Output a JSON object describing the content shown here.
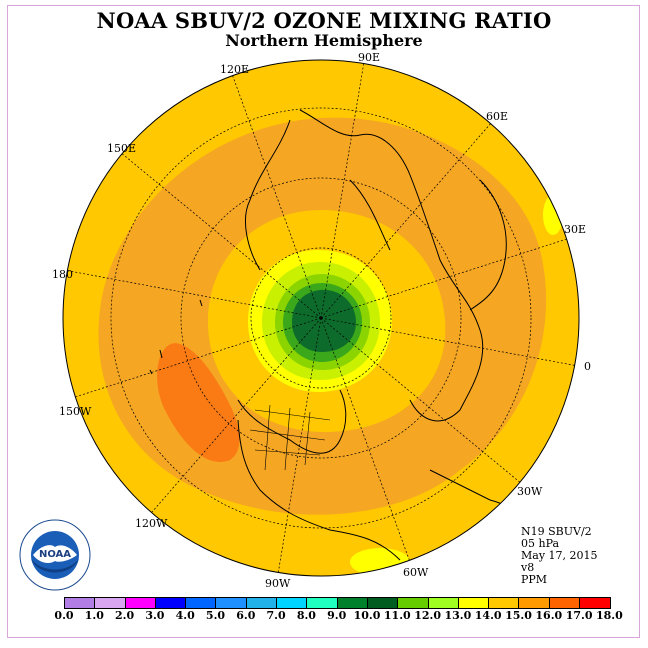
{
  "title": "NOAA SBUV/2 OZONE MIXING RATIO",
  "subtitle": "Northern Hemisphere",
  "longitude_labels": [
    "90E",
    "60E",
    "30E",
    "0",
    "30W",
    "60W",
    "90W",
    "120W",
    "150W",
    "180",
    "150E",
    "120E"
  ],
  "info": {
    "instrument": "N19 SBUV/2",
    "level": "05 hPa",
    "date": "May 17, 2015",
    "version": "v8",
    "units": "PPM"
  },
  "logo": {
    "name": "NOAA",
    "ring_text": "NATIONAL OCEANIC AND ATMOSPHERIC ADMINISTRATION · U.S. DEPARTMENT OF COMMERCE"
  },
  "colorbar": {
    "ticks": [
      "0.0",
      "1.0",
      "2.0",
      "3.0",
      "4.0",
      "5.0",
      "6.0",
      "7.0",
      "8.0",
      "9.0",
      "10.0",
      "11.0",
      "12.0",
      "13.0",
      "14.0",
      "15.0",
      "16.0",
      "17.0",
      "18.0"
    ],
    "colors": [
      "#b27ee6",
      "#d9a6f2",
      "#ff00ff",
      "#0000ff",
      "#0066ff",
      "#1e90ff",
      "#20b2e8",
      "#00d4ff",
      "#20ffbf",
      "#00802b",
      "#005c1f",
      "#66cc00",
      "#a0ff20",
      "#ffff00",
      "#ffc800",
      "#ff9a00",
      "#ff6400",
      "#ff0000",
      "#8b4513"
    ]
  },
  "map_colors": {
    "background": "#ffc800",
    "band_15": "#f5a623",
    "band_16": "#fa7a14",
    "band_13": "#ffff00",
    "band_12": "#c8f000",
    "band_11": "#8cd400",
    "band_10": "#3aa81a",
    "band_9": "#0d6b2b",
    "coast": "#000000",
    "grid": "#000000"
  }
}
